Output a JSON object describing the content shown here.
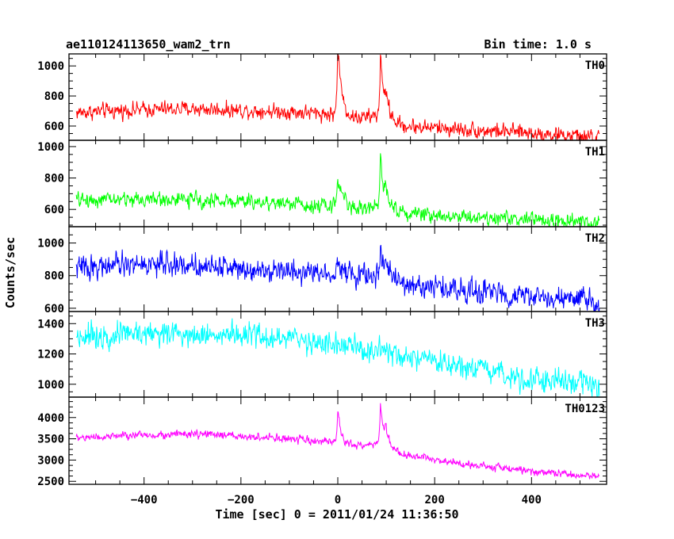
{
  "title_left": "ae110124113650_wam2_trn",
  "title_right": "Bin time: 1.0 s",
  "xlabel": "Time [sec] 0 = 2011/01/24 11:36:50",
  "ylabel": "Counts/sec",
  "chart_data": {
    "type": "line",
    "title": "ae110124113650_wam2_trn",
    "subtitle": "Bin time: 1.0 s",
    "xlabel": "Time [sec] 0 = 2011/01/24 11:36:50",
    "ylabel": "Counts/sec",
    "xlim": [
      -555,
      555
    ],
    "x_ticks": [
      -400,
      -200,
      0,
      200,
      400
    ],
    "x_tick_labels": [
      "−400",
      "−200",
      "0",
      "200",
      "400"
    ],
    "grid": false,
    "series": [
      {
        "name": "TH0",
        "color": "#ff0000",
        "ylim": [
          505,
          1080
        ],
        "y_ticks": [
          600,
          800,
          1000
        ],
        "baseline_x": [
          -540,
          -400,
          -300,
          -200,
          -100,
          -20,
          30,
          75,
          100,
          130,
          200,
          300,
          400,
          540
        ],
        "baseline_y": [
          690,
          710,
          715,
          705,
          695,
          680,
          650,
          665,
          640,
          600,
          590,
          570,
          555,
          520
        ],
        "noise": 30,
        "peaks": [
          {
            "x": 0,
            "amp": 480,
            "rise": 2,
            "decay": 8
          },
          {
            "x": 88,
            "amp": 440,
            "rise": 2,
            "decay": 6
          },
          {
            "x": 98,
            "amp": 150,
            "rise": 2,
            "decay": 10
          }
        ]
      },
      {
        "name": "TH1",
        "color": "#00ff00",
        "ylim": [
          490,
          1040
        ],
        "y_ticks": [
          600,
          800,
          1000
        ],
        "baseline_x": [
          -540,
          -400,
          -300,
          -200,
          -100,
          -20,
          30,
          75,
          100,
          130,
          200,
          300,
          400,
          540
        ],
        "baseline_y": [
          660,
          665,
          660,
          650,
          640,
          620,
          600,
          610,
          600,
          580,
          565,
          550,
          535,
          510
        ],
        "noise": 28,
        "peaks": [
          {
            "x": 0,
            "amp": 200,
            "rise": 3,
            "decay": 12
          },
          {
            "x": 88,
            "amp": 360,
            "rise": 2,
            "decay": 6
          },
          {
            "x": 98,
            "amp": 140,
            "rise": 2,
            "decay": 10
          }
        ]
      },
      {
        "name": "TH2",
        "color": "#0000ff",
        "ylim": [
          580,
          1100
        ],
        "y_ticks": [
          600,
          800,
          1000
        ],
        "baseline_x": [
          -540,
          -400,
          -300,
          -200,
          -100,
          -20,
          30,
          75,
          100,
          130,
          200,
          300,
          400,
          540
        ],
        "baseline_y": [
          850,
          870,
          865,
          850,
          830,
          815,
          795,
          800,
          780,
          745,
          730,
          700,
          670,
          640
        ],
        "noise": 42,
        "peaks": [
          {
            "x": 0,
            "amp": 100,
            "rise": 3,
            "decay": 12
          },
          {
            "x": 88,
            "amp": 230,
            "rise": 2,
            "decay": 6
          },
          {
            "x": 98,
            "amp": 90,
            "rise": 2,
            "decay": 10
          }
        ]
      },
      {
        "name": "TH3",
        "color": "#00ffff",
        "ylim": [
          915,
          1480
        ],
        "y_ticks": [
          1000,
          1200,
          1400
        ],
        "baseline_x": [
          -540,
          -400,
          -300,
          -200,
          -100,
          0,
          100,
          200,
          300,
          400,
          540
        ],
        "baseline_y": [
          1320,
          1340,
          1335,
          1320,
          1300,
          1260,
          1200,
          1140,
          1080,
          1040,
          990
        ],
        "noise": 48,
        "peaks": []
      },
      {
        "name": "TH0123",
        "color": "#ff00ff",
        "ylim": [
          2430,
          4480
        ],
        "y_ticks": [
          2500,
          3000,
          3500,
          4000
        ],
        "baseline_x": [
          -540,
          -400,
          -300,
          -200,
          -100,
          -20,
          30,
          75,
          100,
          130,
          200,
          300,
          400,
          540
        ],
        "baseline_y": [
          3520,
          3590,
          3610,
          3560,
          3490,
          3420,
          3330,
          3370,
          3280,
          3120,
          3020,
          2860,
          2740,
          2600
        ],
        "noise": 55,
        "peaks": [
          {
            "x": 0,
            "amp": 720,
            "rise": 2,
            "decay": 8
          },
          {
            "x": 88,
            "amp": 1080,
            "rise": 2,
            "decay": 6
          },
          {
            "x": 98,
            "amp": 380,
            "rise": 2,
            "decay": 10
          }
        ]
      }
    ]
  }
}
